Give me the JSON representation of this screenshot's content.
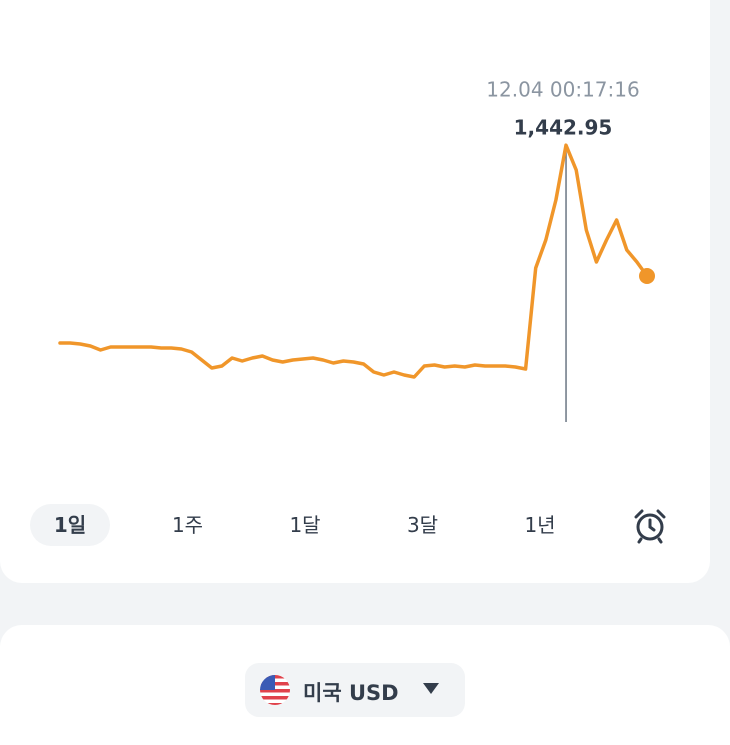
{
  "chart_data": {
    "type": "line",
    "values": [
      1403.4,
      1403.4,
      1403.2,
      1402.8,
      1402,
      1402.6,
      1402.6,
      1402.6,
      1402.6,
      1402.6,
      1402.4,
      1402.4,
      1402.2,
      1401.6,
      1400,
      1398.4,
      1398.8,
      1400.4,
      1399.8,
      1400.4,
      1400.8,
      1400,
      1399.6,
      1400,
      1400.2,
      1400.4,
      1400,
      1399.4,
      1399.8,
      1399.6,
      1399.2,
      1397.6,
      1397,
      1397.6,
      1397,
      1396.6,
      1398.8,
      1399,
      1398.6,
      1398.8,
      1398.6,
      1399,
      1398.8,
      1398.8,
      1398.8,
      1398.6,
      1398.2,
      1418.4,
      1424,
      1432,
      1442.95,
      1438,
      1426,
      1419.6,
      1424,
      1428,
      1422,
      1419.6,
      1416.8
    ],
    "color": "#f0962a",
    "ylim": [
      1380,
      1452
    ],
    "annotation": {
      "text": "12.04 00:17:16",
      "value": 1442.95,
      "label": "1,442.95"
    }
  },
  "periods": [
    "1일",
    "1주",
    "1달",
    "3달",
    "1년"
  ],
  "currency": "미국 USD"
}
